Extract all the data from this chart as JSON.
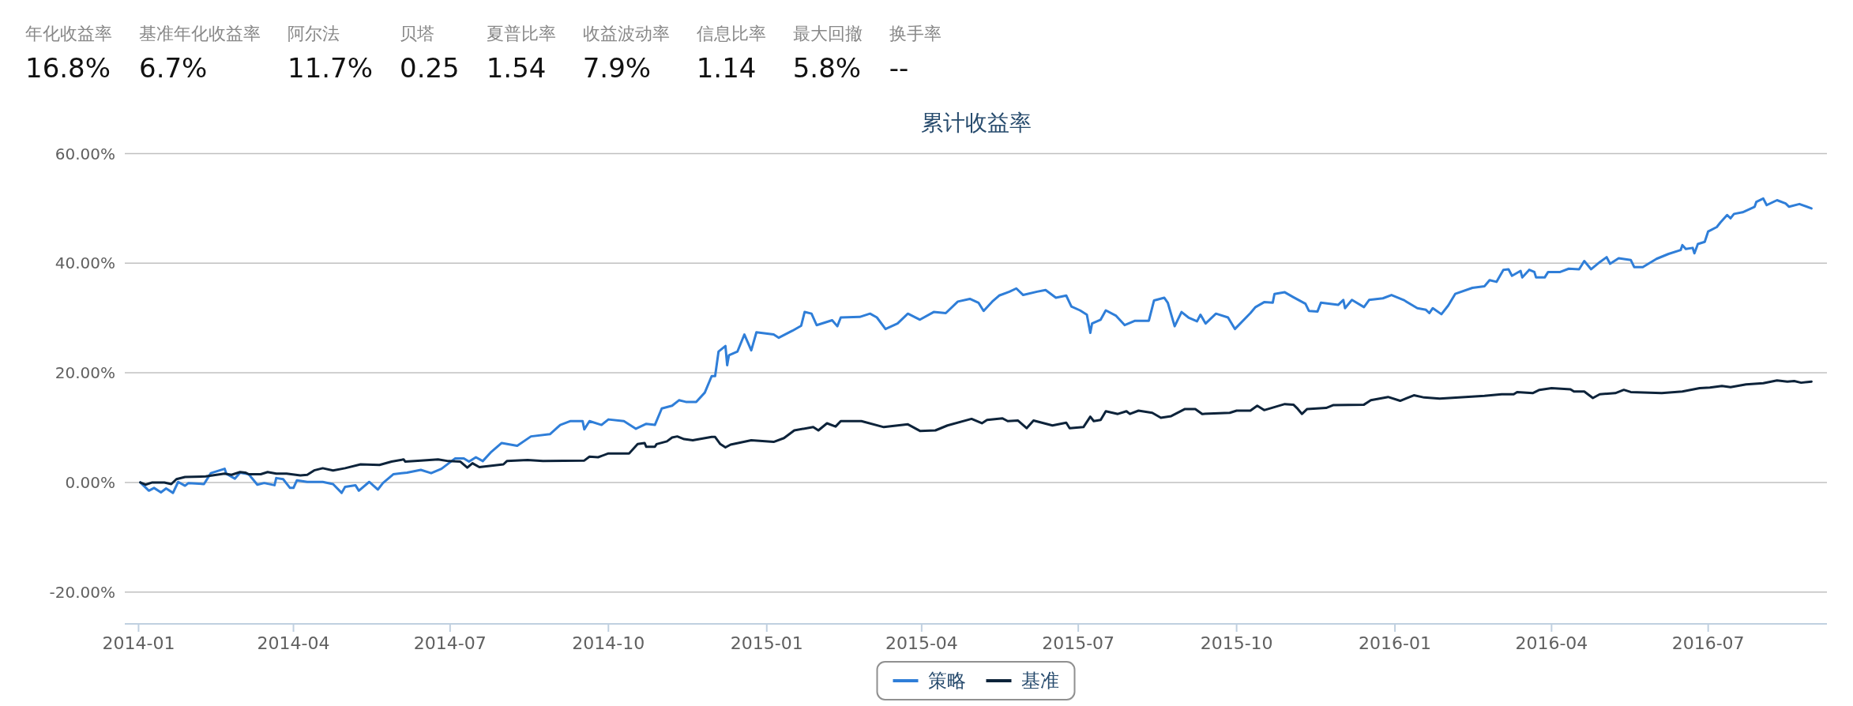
{
  "chart_data": [
    {
      "type": "other",
      "categories": [
        "年化收益率",
        "基准年化收益率",
        "阿尔法",
        "贝塔",
        "夏普比率",
        "收益波动率",
        "信息比率",
        "最大回撤",
        "换手率"
      ],
      "value_labels": [
        "16.8%",
        "6.7%",
        "11.7%",
        "0.25",
        "1.54",
        "7.9%",
        "1.14",
        "5.8%",
        "--"
      ]
    },
    {
      "type": "line",
      "title": "累计收益率",
      "grid": "y",
      "legend": "bottom",
      "line_style": "solid",
      "xlim": [
        "2013-12-24",
        "2016-09-08"
      ],
      "xticks": [
        "2014-01",
        "2014-04",
        "2014-07",
        "2014-10",
        "2015-01",
        "2015-04",
        "2015-07",
        "2015-10",
        "2016-01",
        "2016-04",
        "2016-07"
      ],
      "ylim": [
        -25.8,
        60
      ],
      "yticks": [
        {
          "value": -20,
          "label": "-20.00%"
        },
        {
          "value": 0,
          "label": "0.00%"
        },
        {
          "value": 20,
          "label": "20.00%"
        },
        {
          "value": 40,
          "label": "40.00%"
        },
        {
          "value": 60,
          "label": "60.00%"
        }
      ],
      "series": [
        {
          "name": "策略",
          "color": "#2f7ed8",
          "x": [
            "2014-01-02",
            "2014-01-07",
            "2014-01-10",
            "2014-01-14",
            "2014-01-17",
            "2014-01-21",
            "2014-01-24",
            "2014-01-28",
            "2014-01-30",
            "2014-02-08",
            "2014-02-12",
            "2014-02-20",
            "2014-02-21",
            "2014-02-26",
            "2014-03-01",
            "2014-03-06",
            "2014-03-11",
            "2014-03-15",
            "2014-03-21",
            "2014-03-22",
            "2014-03-26",
            "2014-03-30",
            "2014-04-01",
            "2014-04-03",
            "2014-04-09",
            "2014-04-18",
            "2014-04-24",
            "2014-04-29",
            "2014-05-01",
            "2014-05-07",
            "2014-05-09",
            "2014-05-15",
            "2014-05-20",
            "2014-05-23",
            "2014-05-29",
            "2014-06-06",
            "2014-06-14",
            "2014-06-20",
            "2014-06-26",
            "2014-07-04",
            "2014-07-09",
            "2014-07-12",
            "2014-07-16",
            "2014-07-20",
            "2014-07-25",
            "2014-07-31",
            "2014-08-09",
            "2014-08-17",
            "2014-08-28",
            "2014-09-03",
            "2014-09-09",
            "2014-09-16",
            "2014-09-17",
            "2014-09-20",
            "2014-09-27",
            "2014-10-01",
            "2014-10-10",
            "2014-10-17",
            "2014-10-23",
            "2014-10-28",
            "2014-11-01",
            "2014-11-07",
            "2014-11-11",
            "2014-11-15",
            "2014-11-21",
            "2014-11-26",
            "2014-11-30",
            "2014-12-02",
            "2014-12-04",
            "2014-12-08",
            "2014-12-09",
            "2014-12-10",
            "2014-12-15",
            "2014-12-19",
            "2014-12-23",
            "2014-12-26",
            "2015-01-05",
            "2015-01-08",
            "2015-01-16",
            "2015-01-21",
            "2015-01-23",
            "2015-01-27",
            "2015-01-30",
            "2015-02-08",
            "2015-02-11",
            "2015-02-13",
            "2015-02-24",
            "2015-03-02",
            "2015-03-06",
            "2015-03-11",
            "2015-03-18",
            "2015-03-24",
            "2015-03-31",
            "2015-04-08",
            "2015-04-15",
            "2015-04-22",
            "2015-04-29",
            "2015-05-04",
            "2015-05-07",
            "2015-05-12",
            "2015-05-16",
            "2015-05-22",
            "2015-05-26",
            "2015-05-30",
            "2015-06-07",
            "2015-06-12",
            "2015-06-18",
            "2015-06-24",
            "2015-06-27",
            "2015-07-02",
            "2015-07-06",
            "2015-07-08",
            "2015-07-09",
            "2015-07-14",
            "2015-07-17",
            "2015-07-23",
            "2015-07-28",
            "2015-08-03",
            "2015-08-11",
            "2015-08-14",
            "2015-08-20",
            "2015-08-22",
            "2015-08-26",
            "2015-08-30",
            "2015-09-03",
            "2015-09-08",
            "2015-09-10",
            "2015-09-13",
            "2015-09-19",
            "2015-09-26",
            "2015-09-30",
            "2015-10-09",
            "2015-10-12",
            "2015-10-17",
            "2015-10-22",
            "2015-10-23",
            "2015-10-29",
            "2015-11-03",
            "2015-11-10",
            "2015-11-12",
            "2015-11-17",
            "2015-11-19",
            "2015-11-29",
            "2015-12-02",
            "2015-12-03",
            "2015-12-07",
            "2015-12-14",
            "2015-12-17",
            "2015-12-25",
            "2015-12-30",
            "2016-01-06",
            "2016-01-14",
            "2016-01-19",
            "2016-01-21",
            "2016-01-23",
            "2016-01-28",
            "2016-02-01",
            "2016-02-05",
            "2016-02-15",
            "2016-02-22",
            "2016-02-25",
            "2016-02-29",
            "2016-03-04",
            "2016-03-07",
            "2016-03-09",
            "2016-03-14",
            "2016-03-15",
            "2016-03-19",
            "2016-03-22",
            "2016-03-23",
            "2016-03-28",
            "2016-03-30",
            "2016-04-06",
            "2016-04-11",
            "2016-04-17",
            "2016-04-20",
            "2016-04-24",
            "2016-04-29",
            "2016-05-03",
            "2016-05-05",
            "2016-05-10",
            "2016-05-17",
            "2016-05-19",
            "2016-05-24",
            "2016-06-01",
            "2016-06-08",
            "2016-06-15",
            "2016-06-16",
            "2016-06-18",
            "2016-06-22",
            "2016-06-23",
            "2016-06-25",
            "2016-06-29",
            "2016-07-01",
            "2016-07-06",
            "2016-07-08",
            "2016-07-12",
            "2016-07-14",
            "2016-07-16",
            "2016-07-21",
            "2016-07-28",
            "2016-07-29",
            "2016-08-02",
            "2016-08-04",
            "2016-08-10",
            "2016-08-15",
            "2016-08-17",
            "2016-08-23",
            "2016-08-30"
          ],
          "values": [
            0.0,
            -1.5,
            -1.0,
            -1.8,
            -1.1,
            -1.9,
            0.1,
            -0.6,
            -0.1,
            -0.3,
            1.7,
            2.5,
            1.6,
            0.7,
            1.8,
            1.5,
            -0.4,
            -0.1,
            -0.5,
            0.8,
            0.6,
            -1.0,
            -1.0,
            0.4,
            0.1,
            0.1,
            -0.3,
            -1.9,
            -0.8,
            -0.5,
            -1.5,
            0.1,
            -1.3,
            -0.1,
            1.5,
            1.8,
            2.3,
            1.7,
            2.5,
            4.4,
            4.4,
            3.8,
            4.6,
            3.9,
            5.6,
            7.2,
            6.7,
            8.4,
            8.8,
            10.5,
            11.2,
            11.2,
            9.7,
            11.2,
            10.5,
            11.5,
            11.2,
            9.8,
            10.7,
            10.5,
            13.5,
            14.0,
            15.0,
            14.7,
            14.7,
            16.4,
            19.4,
            19.4,
            23.9,
            24.9,
            21.4,
            23.2,
            23.9,
            27.0,
            24.1,
            27.4,
            27.0,
            26.4,
            27.7,
            28.6,
            31.1,
            30.8,
            28.7,
            29.6,
            28.5,
            30.1,
            30.2,
            30.8,
            30.1,
            28.0,
            29.0,
            30.8,
            29.7,
            31.1,
            30.9,
            33.0,
            33.5,
            32.8,
            31.3,
            33.0,
            34.1,
            34.8,
            35.4,
            34.2,
            34.8,
            35.1,
            33.7,
            34.1,
            32.1,
            31.4,
            30.6,
            27.3,
            29.0,
            29.7,
            31.4,
            30.4,
            28.7,
            29.5,
            29.5,
            33.2,
            33.7,
            32.8,
            28.5,
            31.1,
            30.1,
            29.4,
            30.6,
            29.0,
            30.8,
            30.1,
            28.0,
            30.9,
            32.0,
            32.9,
            32.8,
            34.4,
            34.7,
            33.8,
            32.6,
            31.3,
            31.2,
            32.8,
            32.4,
            33.3,
            31.8,
            33.3,
            32.0,
            33.3,
            33.6,
            34.2,
            33.3,
            31.8,
            31.5,
            30.9,
            31.8,
            30.7,
            32.3,
            34.4,
            35.5,
            35.8,
            36.9,
            36.6,
            38.8,
            38.9,
            37.7,
            38.6,
            37.4,
            38.8,
            38.4,
            37.4,
            37.4,
            38.4,
            38.4,
            39.0,
            38.9,
            40.4,
            38.9,
            40.2,
            41.1,
            39.9,
            40.9,
            40.6,
            39.3,
            39.3,
            40.8,
            41.7,
            42.4,
            43.3,
            42.6,
            42.8,
            41.8,
            43.5,
            43.9,
            45.8,
            46.6,
            47.4,
            48.8,
            48.2,
            49.0,
            49.3,
            50.3,
            51.2,
            51.8,
            50.6,
            51.5,
            50.9,
            50.3,
            50.8,
            50.0
          ]
        },
        {
          "name": "基准",
          "color": "#0d233a",
          "x": [
            "2014-01-02",
            "2014-01-05",
            "2014-01-09",
            "2014-01-16",
            "2014-01-20",
            "2014-01-23",
            "2014-01-28",
            "2014-02-09",
            "2014-02-20",
            "2014-02-24",
            "2014-03-01",
            "2014-03-04",
            "2014-03-06",
            "2014-03-13",
            "2014-03-17",
            "2014-03-22",
            "2014-03-28",
            "2014-04-05",
            "2014-04-09",
            "2014-04-13",
            "2014-04-18",
            "2014-04-24",
            "2014-05-01",
            "2014-05-10",
            "2014-05-21",
            "2014-05-28",
            "2014-06-04",
            "2014-06-05",
            "2014-06-14",
            "2014-06-24",
            "2014-06-30",
            "2014-07-07",
            "2014-07-11",
            "2014-07-14",
            "2014-07-18",
            "2014-08-01",
            "2014-08-03",
            "2014-08-15",
            "2014-08-24",
            "2014-09-17",
            "2014-09-20",
            "2014-09-25",
            "2014-10-01",
            "2014-10-13",
            "2014-10-18",
            "2014-10-22",
            "2014-10-23",
            "2014-10-28",
            "2014-10-29",
            "2014-11-04",
            "2014-11-07",
            "2014-11-10",
            "2014-11-14",
            "2014-11-19",
            "2014-11-30",
            "2014-12-02",
            "2014-12-05",
            "2014-12-08",
            "2014-12-11",
            "2014-12-17",
            "2014-12-23",
            "2015-01-05",
            "2015-01-11",
            "2015-01-17",
            "2015-01-28",
            "2015-01-31",
            "2015-02-05",
            "2015-02-10",
            "2015-02-13",
            "2015-02-25",
            "2015-03-10",
            "2015-03-24",
            "2015-03-31",
            "2015-04-09",
            "2015-04-16",
            "2015-04-30",
            "2015-05-06",
            "2015-05-09",
            "2015-05-18",
            "2015-05-21",
            "2015-05-27",
            "2015-06-01",
            "2015-06-05",
            "2015-06-16",
            "2015-06-24",
            "2015-06-26",
            "2015-07-04",
            "2015-07-08",
            "2015-07-10",
            "2015-07-14",
            "2015-07-17",
            "2015-07-24",
            "2015-07-29",
            "2015-07-31",
            "2015-08-05",
            "2015-08-13",
            "2015-08-18",
            "2015-08-24",
            "2015-09-01",
            "2015-09-07",
            "2015-09-11",
            "2015-09-27",
            "2015-10-01",
            "2015-10-09",
            "2015-10-13",
            "2015-10-17",
            "2015-10-29",
            "2015-11-03",
            "2015-11-05",
            "2015-11-08",
            "2015-11-11",
            "2015-11-22",
            "2015-11-26",
            "2015-12-14",
            "2015-12-18",
            "2015-12-28",
            "2016-01-04",
            "2016-01-12",
            "2016-01-18",
            "2016-01-27",
            "2016-02-22",
            "2016-03-03",
            "2016-03-10",
            "2016-03-12",
            "2016-03-21",
            "2016-03-25",
            "2016-04-01",
            "2016-04-12",
            "2016-04-14",
            "2016-04-20",
            "2016-04-25",
            "2016-04-29",
            "2016-05-08",
            "2016-05-13",
            "2016-05-17",
            "2016-06-04",
            "2016-06-16",
            "2016-06-26",
            "2016-07-02",
            "2016-07-09",
            "2016-07-14",
            "2016-07-23",
            "2016-08-02",
            "2016-08-10",
            "2016-08-16",
            "2016-08-20",
            "2016-08-24",
            "2016-08-30"
          ],
          "values": [
            0.0,
            -0.4,
            0.0,
            0.0,
            -0.3,
            0.6,
            1.0,
            1.1,
            1.6,
            1.4,
            1.9,
            1.8,
            1.5,
            1.5,
            1.9,
            1.6,
            1.6,
            1.3,
            1.4,
            2.2,
            2.6,
            2.2,
            2.6,
            3.3,
            3.2,
            3.8,
            4.2,
            3.8,
            4.0,
            4.2,
            3.9,
            3.8,
            2.7,
            3.5,
            2.8,
            3.3,
            3.9,
            4.1,
            3.9,
            4.0,
            4.7,
            4.6,
            5.3,
            5.3,
            7.0,
            7.2,
            6.5,
            6.5,
            7.0,
            7.5,
            8.2,
            8.4,
            7.9,
            7.7,
            8.3,
            8.3,
            7.0,
            6.4,
            6.9,
            7.3,
            7.7,
            7.4,
            8.1,
            9.5,
            10.1,
            9.5,
            10.8,
            10.2,
            11.2,
            11.2,
            10.1,
            10.6,
            9.4,
            9.5,
            10.4,
            11.6,
            10.8,
            11.4,
            11.7,
            11.2,
            11.3,
            9.9,
            11.3,
            10.4,
            10.9,
            9.9,
            10.1,
            12.0,
            11.2,
            11.4,
            13.0,
            12.5,
            13.0,
            12.5,
            13.1,
            12.7,
            11.8,
            12.1,
            13.4,
            13.4,
            12.5,
            12.7,
            13.1,
            13.1,
            14.0,
            13.2,
            14.3,
            14.2,
            13.6,
            12.5,
            13.4,
            13.6,
            14.1,
            14.2,
            15.0,
            15.6,
            14.9,
            15.9,
            15.5,
            15.3,
            15.8,
            16.1,
            16.1,
            16.5,
            16.3,
            16.9,
            17.2,
            17.0,
            16.6,
            16.6,
            15.4,
            16.1,
            16.3,
            16.9,
            16.5,
            16.3,
            16.6,
            17.2,
            17.3,
            17.6,
            17.4,
            17.9,
            18.1,
            18.6,
            18.4,
            18.5,
            18.2,
            18.4
          ]
        }
      ]
    }
  ]
}
